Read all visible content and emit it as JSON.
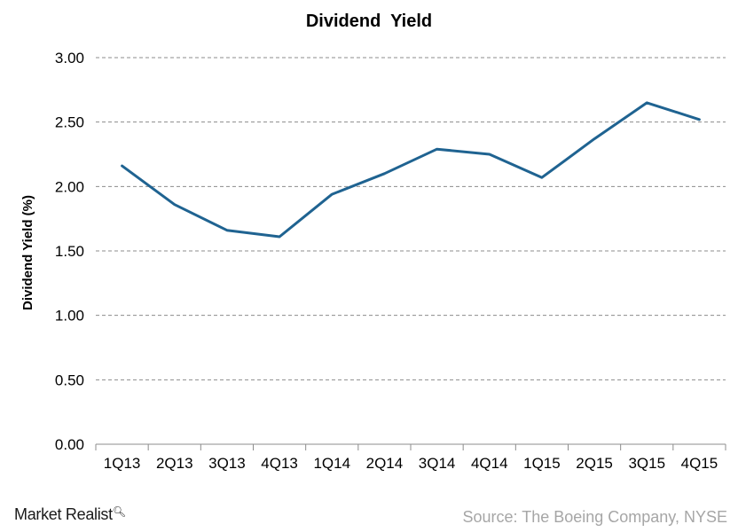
{
  "chart_data": {
    "type": "line",
    "title": "Dividend  Yield",
    "xlabel": "",
    "ylabel": "Dividend Yield (%)",
    "categories": [
      "1Q13",
      "2Q13",
      "3Q13",
      "4Q13",
      "1Q14",
      "2Q14",
      "3Q14",
      "4Q14",
      "1Q15",
      "2Q15",
      "3Q15",
      "4Q15"
    ],
    "series": [
      {
        "values": [
          2.16,
          1.86,
          1.66,
          1.61,
          1.94,
          2.1,
          2.29,
          2.25,
          2.07,
          2.37,
          2.65,
          2.52
        ]
      }
    ],
    "ylim": [
      0,
      3
    ],
    "yticks": [
      "0.00",
      "0.50",
      "1.00",
      "1.50",
      "2.00",
      "2.50",
      "3.00"
    ],
    "grid": true,
    "legend": "none",
    "colors": {
      "line": "#1f6391",
      "grid": "#8c8c8c"
    }
  },
  "footer": {
    "brand": "Market Realist",
    "brand_icon": "magnifier-icon",
    "source": "Source: The Boeing Company, NYSE"
  }
}
